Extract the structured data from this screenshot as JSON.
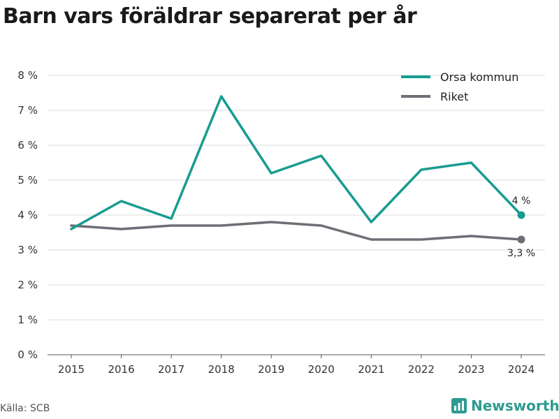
{
  "title": "Barn vars föräldrar separerat per år",
  "source": "Källa: SCB",
  "brand": {
    "name": "Newsworthy",
    "icon": "newsworthy-logo-icon",
    "color": "#2e9b8f"
  },
  "chart_data": {
    "type": "line",
    "x": [
      "2015",
      "2016",
      "2017",
      "2018",
      "2019",
      "2020",
      "2021",
      "2022",
      "2023",
      "2024"
    ],
    "series": [
      {
        "name": "Orsa kommun",
        "color": "#179c8f",
        "values": [
          3.6,
          4.4,
          3.9,
          7.4,
          5.2,
          5.7,
          3.8,
          5.3,
          5.5,
          4.0
        ],
        "end_label": "4 %"
      },
      {
        "name": "Riket",
        "color": "#6e6e76",
        "values": [
          3.7,
          3.6,
          3.7,
          3.7,
          3.8,
          3.7,
          3.3,
          3.3,
          3.4,
          3.3
        ],
        "end_label": "3,3 %"
      }
    ],
    "y_ticks": [
      "0 %",
      "1 %",
      "2 %",
      "3 %",
      "4 %",
      "5 %",
      "6 %",
      "7 %",
      "8 %"
    ],
    "ylim": [
      0,
      8
    ],
    "grid": true,
    "legend": "top-right"
  }
}
